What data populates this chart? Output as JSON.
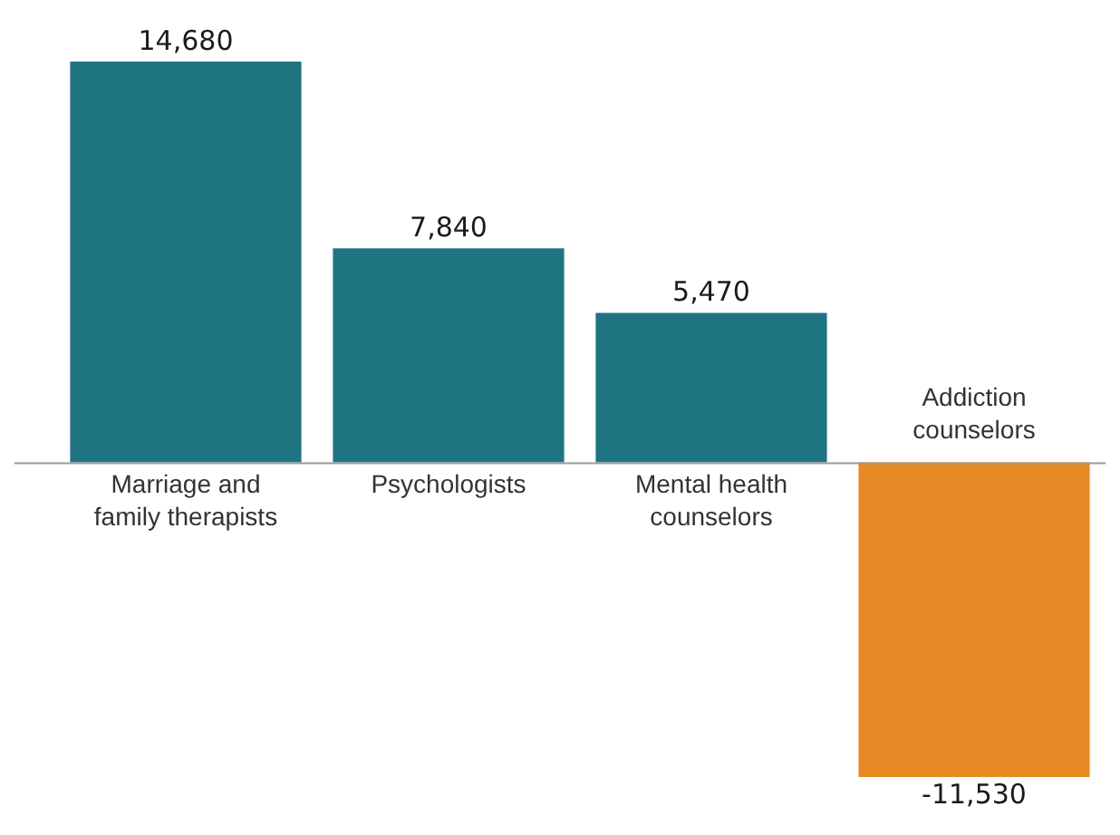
{
  "chart_data": {
    "type": "bar",
    "categories": [
      "Marriage and family therapists",
      "Psychologists",
      "Mental health counselors",
      "Addiction counselors"
    ],
    "values": [
      14680,
      7840,
      5470,
      -11530
    ],
    "colors": [
      "#1f7482",
      "#1f7482",
      "#1f7482",
      "#e88a25"
    ],
    "value_labels": [
      "14,680",
      "7,840",
      "5,470",
      "-11,530"
    ]
  }
}
